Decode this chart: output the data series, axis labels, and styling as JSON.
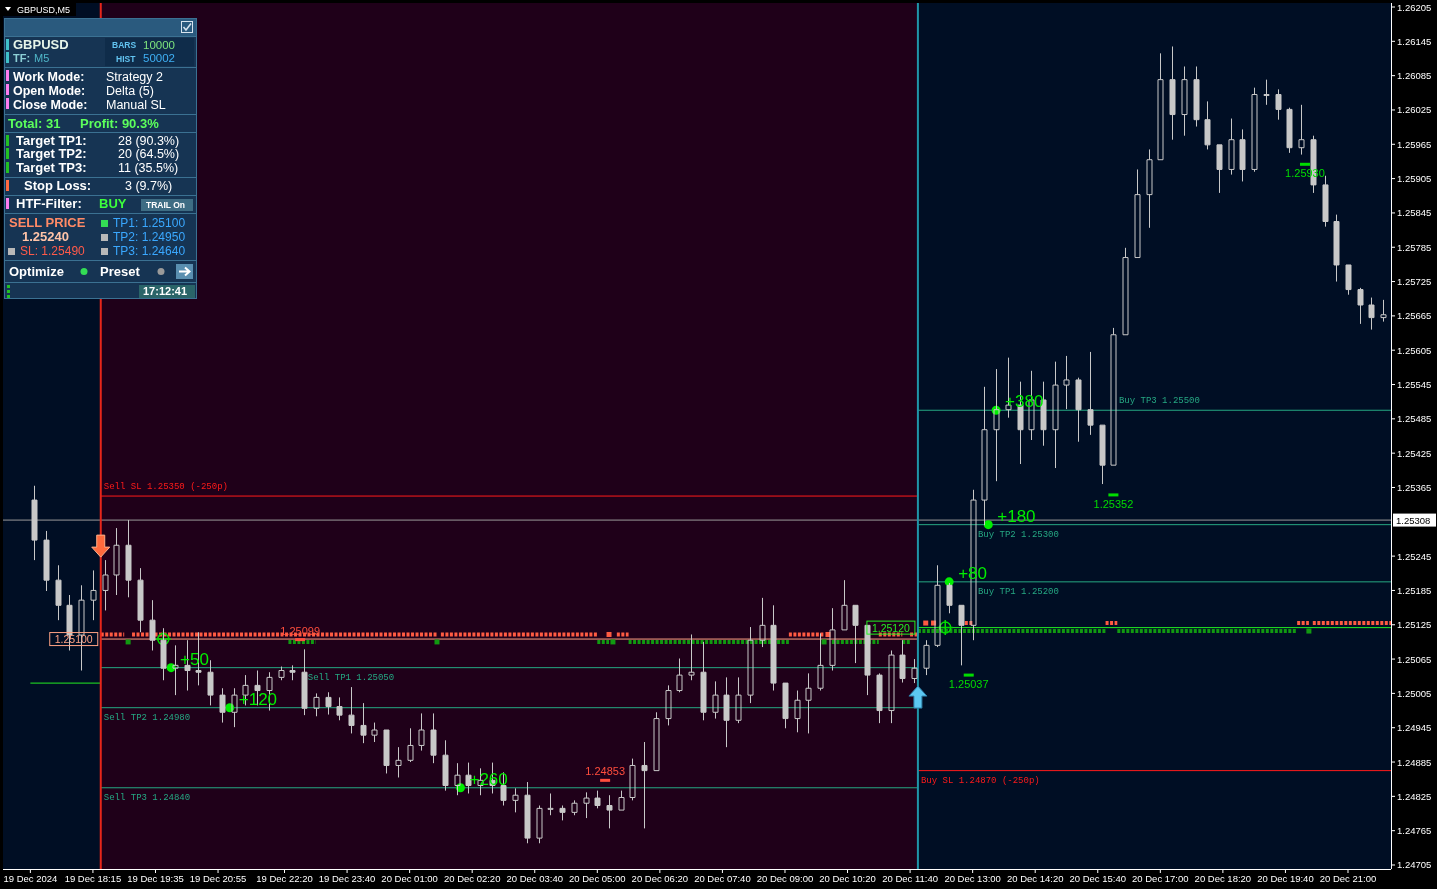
{
  "chart_data": {
    "type": "candlestick",
    "title": "GBPUSD,M5",
    "color": "#c8c8c8",
    "x": [
      "2024-12-19T17:00",
      "2024-12-19T17:15",
      "2024-12-19T17:30",
      "2024-12-19T17:45",
      "2024-12-19T18:00",
      "2024-12-19T18:15",
      "2024-12-19T18:30",
      "2024-12-19T18:45",
      "2024-12-19T19:00",
      "2024-12-19T19:15",
      "2024-12-19T19:30",
      "2024-12-19T19:45",
      "2024-12-19T20:00",
      "2024-12-19T20:15",
      "2024-12-19T20:30",
      "2024-12-19T20:45",
      "2024-12-19T21:00",
      "2024-12-19T21:15",
      "2024-12-19T21:30",
      "2024-12-19T21:45",
      "2024-12-19T22:00",
      "2024-12-19T22:15",
      "2024-12-19T22:30",
      "2024-12-19T22:45",
      "2024-12-19T23:00",
      "2024-12-19T23:15",
      "2024-12-19T23:30",
      "2024-12-19T23:45",
      "2024-12-20T00:00",
      "2024-12-20T00:15",
      "2024-12-20T00:30",
      "2024-12-20T00:45",
      "2024-12-20T01:00",
      "2024-12-20T01:15",
      "2024-12-20T01:30",
      "2024-12-20T01:45",
      "2024-12-20T02:00",
      "2024-12-20T02:15",
      "2024-12-20T02:30",
      "2024-12-20T02:45",
      "2024-12-20T03:00",
      "2024-12-20T03:15",
      "2024-12-20T03:30",
      "2024-12-20T03:45",
      "2024-12-20T04:00",
      "2024-12-20T04:15",
      "2024-12-20T04:30",
      "2024-12-20T04:45",
      "2024-12-20T05:00",
      "2024-12-20T05:15",
      "2024-12-20T05:30",
      "2024-12-20T05:45",
      "2024-12-20T06:00",
      "2024-12-20T06:15",
      "2024-12-20T06:30",
      "2024-12-20T06:45",
      "2024-12-20T07:00",
      "2024-12-20T07:15",
      "2024-12-20T07:30",
      "2024-12-20T07:45",
      "2024-12-20T08:00",
      "2024-12-20T08:15",
      "2024-12-20T08:30",
      "2024-12-20T08:45",
      "2024-12-20T09:00",
      "2024-12-20T09:15",
      "2024-12-20T09:30",
      "2024-12-20T09:45",
      "2024-12-20T10:00",
      "2024-12-20T10:15",
      "2024-12-20T10:30",
      "2024-12-20T10:45",
      "2024-12-20T11:00",
      "2024-12-20T11:15",
      "2024-12-20T11:30",
      "2024-12-20T11:45",
      "2024-12-20T12:00",
      "2024-12-20T12:15",
      "2024-12-20T12:30",
      "2024-12-20T12:45",
      "2024-12-20T13:00",
      "2024-12-20T13:15",
      "2024-12-20T13:30",
      "2024-12-20T13:45",
      "2024-12-20T14:00",
      "2024-12-20T14:15",
      "2024-12-20T14:30",
      "2024-12-20T14:45",
      "2024-12-20T15:00",
      "2024-12-20T15:15",
      "2024-12-20T15:30",
      "2024-12-20T15:45",
      "2024-12-20T16:00",
      "2024-12-20T16:15",
      "2024-12-20T16:30",
      "2024-12-20T16:45",
      "2024-12-20T17:00",
      "2024-12-20T17:15",
      "2024-12-20T17:30",
      "2024-12-20T17:45",
      "2024-12-20T18:00",
      "2024-12-20T18:15",
      "2024-12-20T18:30",
      "2024-12-20T18:45",
      "2024-12-20T19:00",
      "2024-12-20T19:15",
      "2024-12-20T19:30",
      "2024-12-20T19:45",
      "2024-12-20T20:00",
      "2024-12-20T20:15",
      "2024-12-20T20:30",
      "2024-12-20T20:45",
      "2024-12-20T21:00",
      "2024-12-20T21:15",
      "2024-12-20T21:30",
      "2024-12-20T21:45"
    ],
    "ohlc": [
      [
        1.25343,
        1.25368,
        1.25238,
        1.25273
      ],
      [
        1.25273,
        1.25289,
        1.25184,
        1.25203
      ],
      [
        1.25203,
        1.25229,
        1.25133,
        1.25159
      ],
      [
        1.25159,
        1.25177,
        1.2508,
        1.25107
      ],
      [
        1.25107,
        1.25194,
        1.25045,
        1.25168
      ],
      [
        1.25168,
        1.2522,
        1.25133,
        1.25185
      ],
      [
        1.25185,
        1.25238,
        1.2515,
        1.25212
      ],
      [
        1.25212,
        1.25294,
        1.25177,
        1.25264
      ],
      [
        1.25264,
        1.25308,
        1.25173,
        1.25203
      ],
      [
        1.25203,
        1.25224,
        1.25112,
        1.25133
      ],
      [
        1.25133,
        1.25168,
        1.2508,
        1.25098
      ],
      [
        1.25098,
        1.25119,
        1.25028,
        1.25049
      ],
      [
        1.25049,
        1.25089,
        1.25002,
        1.25054
      ],
      [
        1.25054,
        1.25098,
        1.2501,
        1.25045
      ],
      [
        1.25045,
        1.25112,
        1.25019,
        1.25042
      ],
      [
        1.25042,
        1.25063,
        1.24984,
        1.25002
      ],
      [
        1.25002,
        1.25014,
        1.24954,
        1.24972
      ],
      [
        1.24972,
        1.25014,
        1.24946,
        1.25002
      ],
      [
        1.25002,
        1.25037,
        1.24984,
        1.25019
      ],
      [
        1.25019,
        1.25045,
        1.24984,
        1.2501
      ],
      [
        1.2501,
        1.25042,
        1.24975,
        1.25033
      ],
      [
        1.25033,
        1.25052,
        1.25028,
        1.25045
      ],
      [
        1.25045,
        1.25054,
        1.25028,
        1.25042
      ],
      [
        1.25042,
        1.25082,
        1.24967,
        1.24979
      ],
      [
        1.24979,
        1.25005,
        1.24965,
        1.24998
      ],
      [
        1.24998,
        1.25007,
        1.24968,
        1.24982
      ],
      [
        1.24982,
        1.24998,
        1.24958,
        1.24967
      ],
      [
        1.24967,
        1.25016,
        1.24935,
        1.24949
      ],
      [
        1.24949,
        1.24988,
        1.24918,
        1.24932
      ],
      [
        1.24932,
        1.24954,
        1.2492,
        1.24941
      ],
      [
        1.24941,
        1.24941,
        1.24865,
        1.24879
      ],
      [
        1.24879,
        1.24911,
        1.24858,
        1.24888
      ],
      [
        1.24888,
        1.24944,
        1.24885,
        1.24914
      ],
      [
        1.24914,
        1.2497,
        1.24905,
        1.24941
      ],
      [
        1.24941,
        1.2497,
        1.24883,
        1.24897
      ],
      [
        1.24897,
        1.24923,
        1.24835,
        1.24844
      ],
      [
        1.24844,
        1.24883,
        1.24827,
        1.24862
      ],
      [
        1.24862,
        1.24884,
        1.2483,
        1.24844
      ],
      [
        1.24844,
        1.24874,
        1.24827,
        1.24853
      ],
      [
        1.24853,
        1.24884,
        1.2483,
        1.24844
      ],
      [
        1.24844,
        1.24867,
        1.24809,
        1.24818
      ],
      [
        1.24818,
        1.24839,
        1.24797,
        1.24827
      ],
      [
        1.24827,
        1.2485,
        1.24743,
        1.24752
      ],
      [
        1.24752,
        1.24809,
        1.24743,
        1.24804
      ],
      [
        1.24804,
        1.2483,
        1.24792,
        1.24804
      ],
      [
        1.24804,
        1.24809,
        1.24783,
        1.24797
      ],
      [
        1.24797,
        1.24818,
        1.24792,
        1.24813
      ],
      [
        1.24813,
        1.24832,
        1.24787,
        1.24822
      ],
      [
        1.24822,
        1.24835,
        1.24804,
        1.24809
      ],
      [
        1.24809,
        1.24827,
        1.24769,
        1.24801
      ],
      [
        1.24801,
        1.24835,
        1.24801,
        1.24823
      ],
      [
        1.24823,
        1.24891,
        1.24818,
        1.24879
      ],
      [
        1.24879,
        1.2492,
        1.24769,
        1.2487
      ],
      [
        1.2487,
        1.24972,
        1.2487,
        1.24961
      ],
      [
        1.24961,
        1.25019,
        1.24949,
        1.2501
      ],
      [
        1.2501,
        1.25066,
        1.25007,
        1.25037
      ],
      [
        1.25037,
        1.25108,
        1.25028,
        1.25042
      ],
      [
        1.25042,
        1.25095,
        1.24958,
        1.24972
      ],
      [
        1.24972,
        1.25026,
        1.24961,
        1.25002
      ],
      [
        1.25002,
        1.25033,
        1.24911,
        1.24958
      ],
      [
        1.24958,
        1.25033,
        1.24953,
        1.25002
      ],
      [
        1.25002,
        1.25121,
        1.24988,
        1.25098
      ],
      [
        1.25098,
        1.25172,
        1.25086,
        1.25124
      ],
      [
        1.25124,
        1.25159,
        1.2501,
        1.25023
      ],
      [
        1.25023,
        1.25023,
        1.24944,
        1.24961
      ],
      [
        1.24961,
        1.2501,
        1.24937,
        1.24993
      ],
      [
        1.24993,
        1.2504,
        1.24935,
        1.25014
      ],
      [
        1.25014,
        1.2511,
        1.2501,
        1.25054
      ],
      [
        1.25054,
        1.25154,
        1.25045,
        1.25116
      ],
      [
        1.25116,
        1.25203,
        1.25116,
        1.25159
      ],
      [
        1.25159,
        1.25159,
        1.25058,
        1.25124
      ],
      [
        1.25124,
        1.25124,
        1.25002,
        1.25037
      ],
      [
        1.25037,
        1.2504,
        1.24953,
        1.24975
      ],
      [
        1.24975,
        1.2508,
        1.24953,
        1.25072
      ],
      [
        1.25072,
        1.25098,
        1.25024,
        1.25031
      ],
      [
        1.25031,
        1.25065,
        1.25023,
        1.25049
      ],
      [
        1.25049,
        1.25098,
        1.25037,
        1.25089
      ],
      [
        1.25089,
        1.25229,
        1.25086,
        1.25194
      ],
      [
        1.25194,
        1.25198,
        1.25145,
        1.25159
      ],
      [
        1.25159,
        1.25159,
        1.25054,
        1.25124
      ],
      [
        1.25124,
        1.25361,
        1.25098,
        1.25343
      ],
      [
        1.25343,
        1.25541,
        1.25299,
        1.25466
      ],
      [
        1.25466,
        1.25572,
        1.25376,
        1.25501
      ],
      [
        1.25501,
        1.25592,
        1.25487,
        1.25509
      ],
      [
        1.25509,
        1.2555,
        1.25406,
        1.25466
      ],
      [
        1.25466,
        1.25569,
        1.25448,
        1.25518
      ],
      [
        1.25518,
        1.2555,
        1.25438,
        1.25466
      ],
      [
        1.25466,
        1.25585,
        1.25399,
        1.25544
      ],
      [
        1.25544,
        1.25595,
        1.25502,
        1.25553
      ],
      [
        1.25553,
        1.25557,
        1.25445,
        1.25501
      ],
      [
        1.25501,
        1.25602,
        1.25457,
        1.25474
      ],
      [
        1.25474,
        1.25474,
        1.25371,
        1.25404
      ],
      [
        1.25404,
        1.25644,
        1.25404,
        1.25632
      ],
      [
        1.25632,
        1.25784,
        1.25632,
        1.25767
      ],
      [
        1.25767,
        1.25921,
        1.25767,
        1.25877
      ],
      [
        1.25877,
        1.25956,
        1.25819,
        1.25938
      ],
      [
        1.25938,
        1.26124,
        1.25938,
        1.26078
      ],
      [
        1.26078,
        1.26136,
        1.25973,
        1.26017
      ],
      [
        1.26017,
        1.26101,
        1.2598,
        1.26078
      ],
      [
        1.26078,
        1.26101,
        1.25996,
        1.26008
      ],
      [
        1.26008,
        1.2604,
        1.25956,
        1.25964
      ],
      [
        1.25964,
        1.25964,
        1.2588,
        1.25921
      ],
      [
        1.25921,
        1.2601,
        1.25912,
        1.25973
      ],
      [
        1.25973,
        1.25991,
        1.259,
        1.25921
      ],
      [
        1.25921,
        1.26064,
        1.25917,
        1.26052
      ],
      [
        1.26052,
        1.26078,
        1.26034,
        1.26052
      ],
      [
        1.26052,
        1.26061,
        1.26008,
        1.26026
      ],
      [
        1.26026,
        1.26029,
        1.2595,
        1.25959
      ],
      [
        1.25959,
        1.26034,
        1.25947,
        1.25973
      ],
      [
        1.25973,
        1.2598,
        1.2588,
        1.25894
      ],
      [
        1.25894,
        1.2591,
        1.25821,
        1.2583
      ],
      [
        1.2583,
        1.25842,
        1.25725,
        1.25754
      ],
      [
        1.25754,
        1.25754,
        1.25702,
        1.25711
      ],
      [
        1.25711,
        1.25714,
        1.25651,
        1.25684
      ],
      [
        1.25684,
        1.25697,
        1.25641,
        1.25662
      ],
      [
        1.25662,
        1.25693,
        1.25655,
        1.25667
      ]
    ],
    "series": [
      {
        "type": "line",
        "name": "Sell SL 1.25350 (-250p)",
        "x": [
          "2024-12-19T18:25",
          "2024-12-20T11:50"
        ],
        "values": [
          1.2535,
          1.2535
        ],
        "color": "#ff1a1a"
      },
      {
        "type": "line",
        "name": "Sell TP1 1.25050",
        "x": [
          "2024-12-19T18:25",
          "2024-12-20T11:50"
        ],
        "values": [
          1.2505,
          1.2505
        ],
        "color": "#25a883"
      },
      {
        "type": "line",
        "name": "Sell TP2 1.24980",
        "x": [
          "2024-12-19T18:25",
          "2024-12-20T11:50"
        ],
        "values": [
          1.2498,
          1.2498
        ],
        "color": "#25a883"
      },
      {
        "type": "line",
        "name": "Sell TP3 1.24840",
        "x": [
          "2024-12-19T18:25",
          "2024-12-20T11:50"
        ],
        "values": [
          1.2484,
          1.2484
        ],
        "color": "#25a883"
      },
      {
        "type": "line",
        "name": "1.25100",
        "x": [
          "2024-12-19T18:25",
          "2024-12-20T11:50"
        ],
        "values": [
          1.251,
          1.251
        ],
        "color": "#ffa385"
      },
      {
        "type": "line",
        "name": "Buy TP3 1.25500",
        "x": [
          "2024-12-20T11:50",
          "2024-12-20T21:55"
        ],
        "values": [
          1.255,
          1.255
        ],
        "color": "#25a883"
      },
      {
        "type": "line",
        "name": "Buy TP2 1.25300",
        "x": [
          "2024-12-20T11:50",
          "2024-12-20T21:55"
        ],
        "values": [
          1.253,
          1.253
        ],
        "color": "#25a883"
      },
      {
        "type": "line",
        "name": "Buy TP1 1.25200",
        "x": [
          "2024-12-20T11:50",
          "2024-12-20T21:55"
        ],
        "values": [
          1.252,
          1.252
        ],
        "color": "#25a883"
      },
      {
        "type": "line",
        "name": "Buy SL 1.24870 (-250p)",
        "x": [
          "2024-12-20T11:50",
          "2024-12-20T21:55"
        ],
        "values": [
          1.2487,
          1.2487
        ],
        "color": "#ff1a1a"
      },
      {
        "type": "line",
        "name": "1.25120",
        "x": [
          "2024-12-20T11:50",
          "2024-12-20T21:55"
        ],
        "values": [
          1.2512,
          1.2512
        ],
        "color": "#22ee22"
      },
      {
        "type": "line",
        "x": [
          "2024-12-19T16:55",
          "2024-12-19T18:25"
        ],
        "values": [
          1.25023,
          1.25023
        ],
        "color": "#22ee22"
      },
      {
        "type": "line",
        "line_style": "dashed",
        "color": "#ff5b42",
        "x": [
          "2024-12-19T18:25",
          "2024-12-19T18:55"
        ],
        "values": [
          1.25108,
          1.25108
        ]
      },
      {
        "type": "line",
        "line_style": "dashed",
        "color": "#ff5b42",
        "x": [
          "2024-12-19T19:05",
          "2024-12-20T01:35"
        ],
        "values": [
          1.25108,
          1.25108
        ]
      },
      {
        "type": "line",
        "line_style": "dashed",
        "color": "#ff5b42",
        "x": [
          "2024-12-20T01:40",
          "2024-12-20T05:00"
        ],
        "values": [
          1.25108,
          1.25108
        ]
      },
      {
        "type": "line",
        "line_style": "dashed",
        "color": "#ff5b42",
        "x": [
          "2024-12-20T05:25",
          "2024-12-20T05:40"
        ],
        "values": [
          1.25108,
          1.25108
        ]
      },
      {
        "type": "line",
        "line_style": "dashed",
        "color": "#ff5b42",
        "x": [
          "2024-12-20T09:05",
          "2024-12-20T09:50"
        ],
        "values": [
          1.25108,
          1.25108
        ]
      },
      {
        "type": "line",
        "line_style": "dashed",
        "color": "#ff5b42",
        "x": [
          "2024-12-20T11:00",
          "2024-12-20T11:30"
        ],
        "values": [
          1.25108,
          1.25108
        ]
      },
      {
        "type": "line",
        "line_style": "dashed",
        "color": "#ff5b42",
        "x": [
          "2024-12-20T11:40",
          "2024-12-20T11:50"
        ],
        "values": [
          1.25108,
          1.25108
        ]
      },
      {
        "type": "line",
        "line_style": "dashed",
        "color": "#ff5b42",
        "x": [
          "2024-12-20T12:50",
          "2024-12-20T13:00"
        ],
        "values": [
          1.25128,
          1.25128
        ]
      },
      {
        "type": "line",
        "line_style": "dashed",
        "color": "#ff5b42",
        "x": [
          "2024-12-20T15:50",
          "2024-12-20T16:05"
        ],
        "values": [
          1.25128,
          1.25128
        ]
      },
      {
        "type": "line",
        "line_style": "dashed",
        "color": "#ff5b42",
        "x": [
          "2024-12-20T19:55",
          "2024-12-20T20:10"
        ],
        "values": [
          1.25128,
          1.25128
        ]
      },
      {
        "type": "line",
        "line_style": "dashed",
        "color": "#ff5b42",
        "x": [
          "2024-12-20T20:15",
          "2024-12-20T21:55"
        ],
        "values": [
          1.25128,
          1.25128
        ]
      },
      {
        "type": "line",
        "line_style": "dashed",
        "color": "#119a11",
        "x": [
          "2024-12-19T22:25",
          "2024-12-19T23:00"
        ],
        "values": [
          1.25095,
          1.25095
        ]
      },
      {
        "type": "line",
        "line_style": "dashed",
        "color": "#119a11",
        "x": [
          "2024-12-20T05:00",
          "2024-12-20T05:15"
        ],
        "values": [
          1.25095,
          1.25095
        ]
      },
      {
        "type": "line",
        "line_style": "dashed",
        "color": "#119a11",
        "x": [
          "2024-12-20T05:40",
          "2024-12-20T09:05"
        ],
        "values": [
          1.25095,
          1.25095
        ]
      },
      {
        "type": "line",
        "line_style": "dashed",
        "color": "#119a11",
        "x": [
          "2024-12-20T10:00",
          "2024-12-20T11:00"
        ],
        "values": [
          1.25095,
          1.25095
        ]
      },
      {
        "type": "line",
        "line_style": "dashed",
        "color": "#119a11",
        "x": [
          "2024-12-20T11:30",
          "2024-12-20T11:40"
        ],
        "values": [
          1.25095,
          1.25095
        ]
      },
      {
        "type": "line",
        "line_style": "dashed",
        "color": "#119a11",
        "x": [
          "2024-12-20T11:50",
          "2024-12-20T15:50"
        ],
        "values": [
          1.25114,
          1.25114
        ]
      },
      {
        "type": "line",
        "line_style": "dashed",
        "color": "#119a11",
        "x": [
          "2024-12-20T16:05",
          "2024-12-20T19:55"
        ],
        "values": [
          1.25114,
          1.25114
        ]
      },
      {
        "type": "scatter",
        "marker": "square",
        "color": "#ff5b42",
        "x": [
          "2024-12-20T05:15",
          "2024-12-20T09:55",
          "2024-12-20T12:00",
          "2024-12-20T12:10"
        ],
        "values": [
          1.25108,
          1.25108,
          1.25128,
          1.25128
        ]
      },
      {
        "type": "scatter",
        "marker": "square",
        "color": "#119a11",
        "x": [
          "2024-12-19T19:00",
          "2024-12-20T01:35",
          "2024-12-20T05:20",
          "2024-12-20T09:50",
          "2024-12-20T20:10"
        ],
        "values": [
          1.25095,
          1.25095,
          1.25095,
          1.25095,
          1.25114
        ]
      },
      {
        "type": "scatter",
        "marker": "circle",
        "color": "#00ee00",
        "x": [
          "2024-12-19T19:55",
          "2024-12-19T21:10",
          "2024-12-20T02:05",
          "2024-12-20T12:30",
          "2024-12-20T13:20",
          "2024-12-20T13:30"
        ],
        "values": [
          1.2505,
          1.2498,
          1.2484,
          1.252,
          1.253,
          1.255
        ]
      },
      {
        "type": "scatter",
        "marker": "cross",
        "color": "#00dd00",
        "x": [
          "2024-12-19T19:45",
          "2024-12-20T12:25"
        ],
        "values": [
          1.251,
          1.2512
        ]
      }
    ],
    "xlim": [
      "2024-12-19T16:20",
      "2024-12-20T21:55"
    ],
    "xticks": [
      {
        "value": "2024-12-19T16:55",
        "label": "19 Dec 2024"
      },
      {
        "value": "2024-12-19T18:15",
        "label": "19 Dec 18:15"
      },
      {
        "value": "2024-12-19T19:35",
        "label": "19 Dec 19:35"
      },
      {
        "value": "2024-12-19T20:55",
        "label": "19 Dec 20:55"
      },
      {
        "value": "2024-12-19T22:20",
        "label": "19 Dec 22:20"
      },
      {
        "value": "2024-12-19T23:40",
        "label": "19 Dec 23:40"
      },
      {
        "value": "2024-12-20T01:00",
        "label": "20 Dec 01:00"
      },
      {
        "value": "2024-12-20T02:20",
        "label": "20 Dec 02:20"
      },
      {
        "value": "2024-12-20T03:40",
        "label": "20 Dec 03:40"
      },
      {
        "value": "2024-12-20T05:00",
        "label": "20 Dec 05:00"
      },
      {
        "value": "2024-12-20T06:20",
        "label": "20 Dec 06:20"
      },
      {
        "value": "2024-12-20T07:40",
        "label": "20 Dec 07:40"
      },
      {
        "value": "2024-12-20T09:00",
        "label": "20 Dec 09:00"
      },
      {
        "value": "2024-12-20T10:20",
        "label": "20 Dec 10:20"
      },
      {
        "value": "2024-12-20T11:40",
        "label": "20 Dec 11:40"
      },
      {
        "value": "2024-12-20T13:00",
        "label": "20 Dec 13:00"
      },
      {
        "value": "2024-12-20T14:20",
        "label": "20 Dec 14:20"
      },
      {
        "value": "2024-12-20T15:40",
        "label": "20 Dec 15:40"
      },
      {
        "value": "2024-12-20T17:00",
        "label": "20 Dec 17:00"
      },
      {
        "value": "2024-12-20T18:20",
        "label": "20 Dec 18:20"
      },
      {
        "value": "2024-12-20T19:40",
        "label": "20 Dec 19:40"
      },
      {
        "value": "2024-12-20T21:00",
        "label": "20 Dec 21:00"
      }
    ],
    "ylim": [
      1.24698,
      1.26212
    ],
    "yticks": [
      1.24705,
      1.24765,
      1.24825,
      1.24885,
      1.24945,
      1.25005,
      1.25065,
      1.25125,
      1.25185,
      1.25245,
      1.25365,
      1.25425,
      1.25485,
      1.25545,
      1.25605,
      1.25665,
      1.25725,
      1.25785,
      1.25845,
      1.25905,
      1.25965,
      1.26025,
      1.26085,
      1.26145,
      1.26205
    ],
    "ref_lines": [
      {
        "axis": "x",
        "value": "2024-12-19T18:25",
        "color": "#e8261a"
      },
      {
        "axis": "x",
        "value": "2024-12-20T11:50",
        "color": "#1f95a8"
      },
      {
        "axis": "y",
        "value": 1.25308,
        "label": "1.25308",
        "color": "#9a9a9a"
      }
    ],
    "bands": [
      {
        "axis": "x",
        "from": "2024-12-19T18:25",
        "to": "2024-12-20T11:50",
        "color": "#1f0019"
      }
    ],
    "annotations": [
      {
        "text": "+50",
        "x": "2024-12-19T19:55",
        "y": 1.2505
      },
      {
        "text": "+120",
        "x": "2024-12-19T21:10",
        "y": 1.2498
      },
      {
        "text": "+260",
        "x": "2024-12-20T02:05",
        "y": 1.2484
      },
      {
        "text": "+80",
        "x": "2024-12-20T12:30",
        "y": 1.252
      },
      {
        "text": "+180",
        "x": "2024-12-20T13:20",
        "y": 1.253
      },
      {
        "text": "+380",
        "x": "2024-12-20T13:30",
        "y": 1.255
      },
      {
        "text": "1.25099",
        "x": "2024-12-19T22:40",
        "y": 1.25099
      },
      {
        "text": "1.24853",
        "x": "2024-12-20T05:10",
        "y": 1.24853
      },
      {
        "text": "1.25037",
        "x": "2024-12-20T12:55",
        "y": 1.25037
      },
      {
        "text": "1.25352",
        "x": "2024-12-20T16:00",
        "y": 1.25352
      },
      {
        "text": "1.25930",
        "x": "2024-12-20T20:05",
        "y": 1.2593
      },
      "GBPUSD",
      "TF:",
      "M5",
      "BARS",
      "10000",
      "HIST",
      "50002",
      "Work Mode:",
      "Strategy 2",
      "Open Mode:",
      "Delta (5)",
      "Close Mode:",
      "Manual SL",
      "Total: 31",
      "Profit: 90.3%",
      "Target TP1:",
      "28 (90.3%)",
      "Target TP2:",
      "20 (64.5%)",
      "Target TP3:",
      "11 (35.5%)",
      "Stop Loss:",
      "3 (9.7%)",
      "HTF-Filter:",
      "BUY",
      "TRAIL On",
      "SELL PRICE",
      "1.25240",
      "SL: 1.25490",
      "TP1: 1.25100",
      "TP2: 1.24950",
      "TP3: 1.24640",
      "Optimize",
      "Preset",
      "17:12:41"
    ]
  }
}
